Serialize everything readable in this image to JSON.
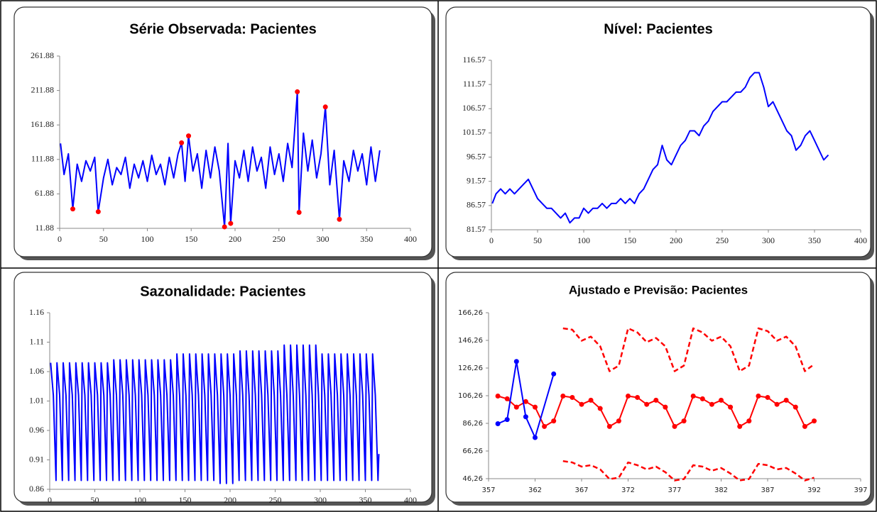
{
  "chart_data": [
    {
      "type": "line",
      "title": "Série Observada:  Pacientes",
      "xlim": [
        0,
        400
      ],
      "xticks": [
        0,
        50,
        100,
        150,
        200,
        250,
        300,
        350,
        400
      ],
      "ylim": [
        11.88,
        261.88
      ],
      "yticks": [
        11.88,
        61.88,
        111.88,
        161.88,
        211.88,
        261.88
      ],
      "series": [
        {
          "color": "#0000ff",
          "line": true,
          "marker": false,
          "x": [
            1,
            5,
            10,
            15,
            20,
            25,
            30,
            35,
            40,
            44,
            50,
            55,
            60,
            65,
            70,
            75,
            80,
            85,
            90,
            95,
            100,
            105,
            110,
            115,
            120,
            125,
            130,
            135,
            139,
            143,
            147,
            152,
            157,
            162,
            167,
            172,
            177,
            182,
            188,
            192,
            195,
            200,
            205,
            210,
            215,
            220,
            225,
            230,
            235,
            240,
            245,
            250,
            255,
            260,
            265,
            271,
            273,
            278,
            283,
            288,
            293,
            298,
            303,
            308,
            313,
            319,
            324,
            330,
            335,
            340,
            345,
            350,
            355,
            360,
            365
          ],
          "values": [
            135,
            90,
            120,
            40,
            105,
            80,
            110,
            95,
            115,
            36,
            85,
            112,
            75,
            100,
            90,
            115,
            70,
            105,
            85,
            110,
            80,
            118,
            90,
            105,
            75,
            115,
            85,
            120,
            136,
            80,
            146,
            95,
            120,
            70,
            125,
            85,
            130,
            95,
            14,
            135,
            19,
            110,
            85,
            125,
            80,
            130,
            95,
            115,
            70,
            130,
            90,
            120,
            80,
            135,
            100,
            210,
            35,
            150,
            95,
            140,
            85,
            120,
            188,
            75,
            125,
            25,
            110,
            80,
            125,
            95,
            120,
            75,
            130,
            80,
            125
          ]
        },
        {
          "color": "#ff0000",
          "line": false,
          "marker": true,
          "x": [
            15,
            44,
            139,
            147,
            188,
            195,
            271,
            273,
            303,
            319
          ],
          "values": [
            40,
            36,
            136,
            146,
            14,
            19,
            210,
            35,
            188,
            25
          ]
        }
      ]
    },
    {
      "type": "line",
      "title": "Nível:  Pacientes",
      "xlim": [
        0,
        400
      ],
      "xticks": [
        0,
        50,
        100,
        150,
        200,
        250,
        300,
        350,
        400
      ],
      "ylim": [
        81.57,
        116.57
      ],
      "yticks": [
        81.57,
        86.57,
        91.57,
        96.57,
        101.57,
        106.57,
        111.57,
        116.57
      ],
      "series": [
        {
          "color": "#0000ff",
          "line": true,
          "marker": false,
          "x": [
            1,
            5,
            10,
            15,
            20,
            25,
            30,
            35,
            40,
            45,
            50,
            55,
            60,
            65,
            70,
            75,
            80,
            85,
            90,
            95,
            100,
            105,
            110,
            115,
            120,
            125,
            130,
            135,
            140,
            145,
            150,
            155,
            160,
            165,
            170,
            175,
            180,
            185,
            190,
            195,
            200,
            205,
            210,
            215,
            220,
            225,
            230,
            235,
            240,
            245,
            250,
            255,
            260,
            265,
            270,
            275,
            280,
            285,
            290,
            295,
            300,
            305,
            310,
            315,
            320,
            325,
            330,
            335,
            340,
            345,
            350,
            355,
            360,
            365
          ],
          "values": [
            87,
            89,
            90,
            89,
            90,
            89,
            90,
            91,
            92,
            90,
            88,
            87,
            86,
            86,
            85,
            84,
            85,
            83,
            84,
            84,
            86,
            85,
            86,
            86,
            87,
            86,
            87,
            87,
            88,
            87,
            88,
            87,
            89,
            90,
            92,
            94,
            95,
            99,
            96,
            95,
            97,
            99,
            100,
            102,
            102,
            101,
            103,
            104,
            106,
            107,
            108,
            108,
            109,
            110,
            110,
            111,
            113,
            114,
            114,
            111,
            107,
            108,
            106,
            104,
            102,
            101,
            98,
            99,
            101,
            102,
            100,
            98,
            96,
            97
          ]
        }
      ]
    },
    {
      "type": "line",
      "title": "Sazonalidade:  Pacientes",
      "xlim": [
        0,
        400
      ],
      "xticks": [
        0,
        50,
        100,
        150,
        200,
        250,
        300,
        350,
        400
      ],
      "ylim": [
        0.86,
        1.16
      ],
      "yticks": [
        0.86,
        0.91,
        0.96,
        1.01,
        1.06,
        1.11,
        1.16
      ],
      "series": [
        {
          "color": "#0000ff",
          "line": true,
          "marker": false,
          "x": [
            1,
            4,
            7,
            8,
            11,
            14,
            15,
            18,
            21,
            22,
            25,
            28,
            29,
            32,
            35,
            36,
            39,
            42,
            43,
            46,
            49,
            50,
            53,
            56,
            57,
            60,
            63,
            64,
            67,
            70,
            71,
            74,
            77,
            78,
            81,
            84,
            85,
            88,
            91,
            92,
            95,
            98,
            99,
            102,
            105,
            106,
            109,
            112,
            113,
            116,
            119,
            120,
            123,
            126,
            127,
            130,
            133,
            134,
            137,
            140,
            141,
            144,
            147,
            148,
            151,
            154,
            155,
            158,
            161,
            162,
            165,
            168,
            169,
            172,
            175,
            176,
            179,
            182,
            183,
            186,
            189,
            190,
            193,
            196,
            197,
            200,
            203,
            204,
            207,
            210,
            211,
            214,
            217,
            218,
            221,
            224,
            225,
            228,
            231,
            232,
            235,
            238,
            239,
            242,
            245,
            246,
            249,
            252,
            253,
            256,
            259,
            260,
            263,
            266,
            267,
            270,
            273,
            274,
            277,
            280,
            281,
            284,
            287,
            288,
            291,
            294,
            295,
            298,
            301,
            302,
            305,
            308,
            309,
            312,
            315,
            316,
            319,
            322,
            323,
            326,
            329,
            330,
            333,
            336,
            337,
            340,
            343,
            344,
            347,
            350,
            351,
            354,
            357,
            358,
            361,
            364,
            365
          ],
          "values": [
            1.075,
            1.02,
            0.875,
            1.075,
            1.02,
            0.875,
            1.075,
            1.02,
            0.875,
            1.075,
            1.02,
            0.875,
            1.075,
            1.02,
            0.875,
            1.075,
            1.02,
            0.875,
            1.075,
            1.02,
            0.875,
            1.075,
            1.02,
            0.875,
            1.075,
            1.02,
            0.875,
            1.075,
            1.02,
            0.875,
            1.08,
            1.02,
            0.875,
            1.08,
            1.02,
            0.875,
            1.08,
            1.02,
            0.875,
            1.08,
            1.02,
            0.875,
            1.08,
            1.02,
            0.875,
            1.08,
            1.02,
            0.875,
            1.08,
            1.02,
            0.875,
            1.08,
            1.02,
            0.875,
            1.08,
            1.02,
            0.875,
            1.08,
            1.02,
            0.875,
            1.09,
            1.02,
            0.875,
            1.09,
            1.02,
            0.875,
            1.09,
            1.02,
            0.875,
            1.09,
            1.02,
            0.875,
            1.09,
            1.02,
            0.875,
            1.09,
            1.02,
            0.875,
            1.09,
            1.02,
            0.87,
            1.09,
            1.02,
            0.87,
            1.09,
            1.02,
            0.87,
            1.09,
            1.02,
            0.875,
            1.095,
            1.02,
            0.875,
            1.095,
            1.02,
            0.875,
            1.095,
            1.02,
            0.875,
            1.095,
            1.02,
            0.875,
            1.095,
            1.02,
            0.875,
            1.095,
            1.02,
            0.875,
            1.095,
            1.02,
            0.875,
            1.105,
            1.02,
            0.875,
            1.105,
            1.02,
            0.875,
            1.105,
            1.02,
            0.875,
            1.105,
            1.02,
            0.875,
            1.105,
            1.02,
            0.875,
            1.105,
            1.02,
            0.875,
            1.09,
            1.02,
            0.875,
            1.09,
            1.02,
            0.875,
            1.09,
            1.02,
            0.875,
            1.09,
            1.02,
            0.875,
            1.09,
            1.02,
            0.875,
            1.09,
            1.02,
            0.875,
            1.09,
            1.02,
            0.875,
            1.09,
            1.02,
            0.875,
            1.09,
            1.02,
            0.875,
            0.92
          ]
        }
      ]
    },
    {
      "type": "line",
      "title": "Ajustado e Previsão:  Pacientes",
      "xlim": [
        357,
        397
      ],
      "xticks": [
        357,
        362,
        367,
        372,
        377,
        382,
        387,
        392,
        397
      ],
      "ylim": [
        46.26,
        166.26
      ],
      "yticks": [
        {
          "value": 46.26,
          "label": "46,26"
        },
        {
          "value": 66.26,
          "label": "66,26"
        },
        {
          "value": 86.26,
          "label": "86,26"
        },
        {
          "value": 106.26,
          "label": "106,26"
        },
        {
          "value": 126.26,
          "label": "126,26"
        },
        {
          "value": 146.26,
          "label": "146,26"
        },
        {
          "value": 166.26,
          "label": "166,26"
        }
      ],
      "series": [
        {
          "color": "#ff0000",
          "line": true,
          "dash": true,
          "marker": false,
          "x": [
            365,
            366,
            367,
            368,
            369,
            370,
            371,
            372,
            373,
            374,
            375,
            376,
            377,
            378,
            379,
            380,
            381,
            382,
            383,
            384,
            385,
            386,
            387,
            388,
            389,
            390,
            391,
            392
          ],
          "values": [
            155,
            154,
            146,
            149,
            142,
            124,
            128,
            155,
            152,
            145,
            148,
            142,
            124,
            128,
            155,
            152,
            146,
            149,
            142,
            124,
            128,
            155,
            153,
            146,
            149,
            142,
            124,
            129
          ]
        },
        {
          "color": "#ff0000",
          "line": true,
          "dash": true,
          "marker": false,
          "x": [
            365,
            366,
            367,
            368,
            369,
            370,
            371,
            372,
            373,
            374,
            375,
            376,
            377,
            378,
            379,
            380,
            381,
            382,
            383,
            384,
            385,
            386,
            387,
            388,
            389,
            390,
            391,
            392
          ],
          "values": [
            59,
            58,
            55,
            56,
            53,
            46,
            47,
            58,
            56,
            53,
            55,
            51,
            45,
            46,
            56,
            55,
            52,
            54,
            50,
            45,
            46,
            57,
            56,
            53,
            54,
            50,
            45,
            47
          ]
        },
        {
          "color": "#ff0000",
          "line": true,
          "marker": true,
          "x": [
            358,
            359,
            360,
            361,
            362,
            363,
            364,
            365,
            366,
            367,
            368,
            369,
            370,
            371,
            372,
            373,
            374,
            375,
            376,
            377,
            378,
            379,
            380,
            381,
            382,
            383,
            384,
            385,
            386,
            387,
            388,
            389,
            390,
            391,
            392
          ],
          "values": [
            106,
            104,
            98,
            102,
            98,
            84,
            88,
            106,
            105,
            100,
            103,
            97,
            84,
            88,
            106,
            105,
            100,
            103,
            98,
            84,
            88,
            106,
            104,
            100,
            103,
            98,
            84,
            88,
            106,
            105,
            100,
            103,
            98,
            84,
            88
          ]
        },
        {
          "color": "#0000ff",
          "line": true,
          "marker": true,
          "x": [
            358,
            359,
            360,
            361,
            362,
            364
          ],
          "values": [
            86,
            89,
            131,
            91,
            76,
            122
          ]
        }
      ]
    }
  ]
}
